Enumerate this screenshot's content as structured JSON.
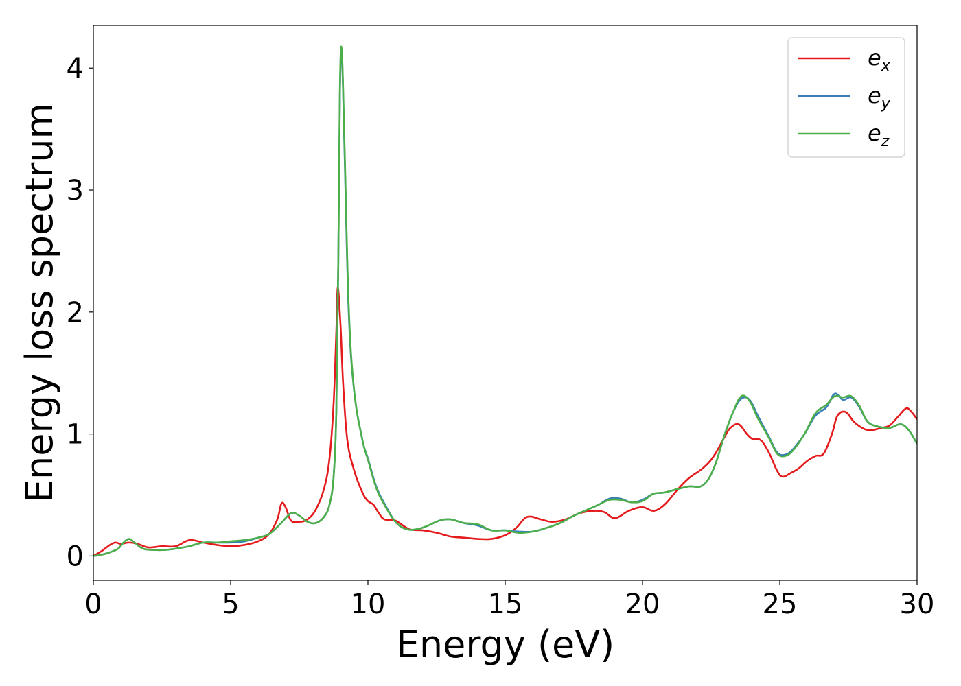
{
  "chart_data": {
    "type": "line",
    "xlabel": "Energy (eV)",
    "ylabel": "Energy loss spectrum",
    "xlim": [
      0,
      30
    ],
    "ylim": [
      -0.2,
      4.35
    ],
    "xticks": [
      0,
      5,
      10,
      15,
      20,
      25,
      30
    ],
    "yticks": [
      0,
      1,
      2,
      3,
      4
    ],
    "xtick_labels": [
      "0",
      "5",
      "10",
      "15",
      "20",
      "25",
      "30"
    ],
    "ytick_labels": [
      "0",
      "1",
      "2",
      "3",
      "4"
    ],
    "grid": false,
    "legend_position": "top-right",
    "series": [
      {
        "name": "e_x",
        "label_base": "e",
        "label_sub": "x",
        "color": "#e41a1c",
        "x": [
          0,
          0.3,
          0.6,
          0.8,
          1.0,
          1.3,
          1.6,
          2.0,
          2.5,
          3.0,
          3.5,
          4.0,
          4.5,
          5.0,
          5.5,
          6.0,
          6.4,
          6.7,
          6.85,
          7.0,
          7.2,
          7.5,
          7.8,
          8.1,
          8.4,
          8.6,
          8.75,
          8.85,
          8.9,
          9.0,
          9.1,
          9.25,
          9.5,
          9.8,
          10.0,
          10.2,
          10.4,
          10.6,
          11.0,
          11.5,
          12.0,
          12.5,
          13.0,
          13.5,
          14.0,
          14.5,
          15.0,
          15.4,
          15.8,
          16.3,
          16.7,
          17.2,
          17.7,
          18.2,
          18.6,
          19.0,
          19.5,
          20.0,
          20.4,
          20.8,
          21.3,
          21.7,
          22.2,
          22.6,
          23.0,
          23.2,
          23.5,
          23.8,
          24.0,
          24.3,
          24.6,
          24.9,
          25.1,
          25.4,
          25.7,
          26.0,
          26.3,
          26.6,
          26.9,
          27.1,
          27.4,
          27.7,
          28.0,
          28.3,
          28.7,
          29.0,
          29.3,
          29.6,
          29.8,
          30.0
        ],
        "y": [
          0.0,
          0.04,
          0.09,
          0.11,
          0.1,
          0.11,
          0.1,
          0.07,
          0.08,
          0.08,
          0.13,
          0.11,
          0.09,
          0.08,
          0.09,
          0.12,
          0.18,
          0.3,
          0.43,
          0.4,
          0.29,
          0.28,
          0.3,
          0.38,
          0.55,
          0.8,
          1.25,
          1.85,
          2.2,
          1.9,
          1.4,
          0.95,
          0.7,
          0.52,
          0.45,
          0.42,
          0.35,
          0.3,
          0.29,
          0.22,
          0.21,
          0.19,
          0.16,
          0.15,
          0.14,
          0.14,
          0.17,
          0.23,
          0.32,
          0.3,
          0.28,
          0.3,
          0.35,
          0.37,
          0.36,
          0.31,
          0.37,
          0.4,
          0.37,
          0.42,
          0.55,
          0.64,
          0.72,
          0.82,
          0.98,
          1.05,
          1.08,
          1.0,
          0.96,
          0.95,
          0.85,
          0.7,
          0.65,
          0.68,
          0.72,
          0.78,
          0.82,
          0.84,
          1.0,
          1.15,
          1.18,
          1.1,
          1.05,
          1.03,
          1.05,
          1.07,
          1.14,
          1.21,
          1.18,
          1.12
        ]
      },
      {
        "name": "e_y",
        "label_base": "e",
        "label_sub": "y",
        "color": "#377eb8",
        "x": [
          0,
          0.3,
          0.6,
          0.9,
          1.1,
          1.3,
          1.5,
          1.8,
          2.2,
          2.6,
          3.0,
          3.5,
          4.0,
          4.5,
          5.0,
          5.5,
          6.0,
          6.4,
          6.8,
          7.2,
          7.5,
          7.8,
          8.1,
          8.4,
          8.6,
          8.75,
          8.85,
          8.92,
          8.98,
          9.05,
          9.15,
          9.3,
          9.5,
          9.8,
          10.0,
          10.3,
          10.6,
          11.0,
          11.4,
          11.8,
          12.2,
          12.6,
          13.0,
          13.5,
          14.0,
          14.5,
          15.0,
          15.5,
          16.0,
          16.5,
          17.0,
          17.5,
          18.0,
          18.4,
          18.8,
          19.2,
          19.6,
          20.0,
          20.4,
          20.8,
          21.3,
          21.7,
          22.2,
          22.6,
          23.0,
          23.3,
          23.6,
          23.9,
          24.2,
          24.6,
          24.9,
          25.2,
          25.5,
          25.9,
          26.3,
          26.7,
          27.0,
          27.3,
          27.6,
          27.9,
          28.2,
          28.6,
          29.0,
          29.4,
          29.7,
          30.0
        ],
        "y": [
          0.0,
          0.01,
          0.03,
          0.06,
          0.11,
          0.14,
          0.11,
          0.06,
          0.05,
          0.05,
          0.06,
          0.08,
          0.11,
          0.11,
          0.11,
          0.12,
          0.15,
          0.18,
          0.26,
          0.35,
          0.33,
          0.28,
          0.27,
          0.32,
          0.42,
          0.65,
          1.2,
          2.4,
          3.8,
          4.12,
          3.3,
          2.0,
          1.35,
          0.95,
          0.8,
          0.57,
          0.43,
          0.28,
          0.22,
          0.22,
          0.25,
          0.29,
          0.3,
          0.27,
          0.25,
          0.21,
          0.21,
          0.2,
          0.2,
          0.23,
          0.27,
          0.33,
          0.38,
          0.42,
          0.47,
          0.47,
          0.44,
          0.46,
          0.51,
          0.52,
          0.55,
          0.57,
          0.58,
          0.72,
          1.0,
          1.18,
          1.29,
          1.28,
          1.15,
          0.98,
          0.85,
          0.83,
          0.88,
          1.0,
          1.15,
          1.22,
          1.33,
          1.28,
          1.3,
          1.22,
          1.1,
          1.06,
          1.05,
          1.08,
          1.03,
          0.92
        ]
      },
      {
        "name": "e_z",
        "label_base": "e",
        "label_sub": "z",
        "color": "#4daf4a",
        "x": [
          0,
          0.3,
          0.6,
          0.9,
          1.1,
          1.3,
          1.5,
          1.8,
          2.2,
          2.6,
          3.0,
          3.5,
          4.0,
          4.5,
          5.0,
          5.5,
          6.0,
          6.4,
          6.8,
          7.2,
          7.5,
          7.8,
          8.1,
          8.4,
          8.6,
          8.75,
          8.85,
          8.92,
          8.98,
          9.05,
          9.15,
          9.3,
          9.5,
          9.8,
          10.0,
          10.3,
          10.6,
          11.0,
          11.4,
          11.8,
          12.2,
          12.6,
          13.0,
          13.5,
          14.0,
          14.5,
          15.0,
          15.5,
          16.0,
          16.5,
          17.0,
          17.5,
          18.0,
          18.4,
          18.8,
          19.2,
          19.6,
          20.0,
          20.4,
          20.8,
          21.3,
          21.7,
          22.2,
          22.6,
          23.0,
          23.3,
          23.6,
          23.9,
          24.2,
          24.6,
          24.9,
          25.2,
          25.5,
          25.9,
          26.3,
          26.7,
          27.0,
          27.3,
          27.6,
          27.9,
          28.2,
          28.6,
          29.0,
          29.4,
          29.7,
          30.0
        ],
        "y": [
          0.0,
          0.01,
          0.03,
          0.06,
          0.11,
          0.14,
          0.11,
          0.06,
          0.05,
          0.05,
          0.06,
          0.08,
          0.11,
          0.11,
          0.12,
          0.13,
          0.15,
          0.18,
          0.26,
          0.35,
          0.33,
          0.28,
          0.27,
          0.32,
          0.42,
          0.65,
          1.2,
          2.4,
          3.85,
          4.14,
          3.35,
          2.05,
          1.35,
          0.95,
          0.79,
          0.56,
          0.42,
          0.28,
          0.22,
          0.22,
          0.25,
          0.29,
          0.3,
          0.27,
          0.26,
          0.21,
          0.21,
          0.19,
          0.2,
          0.23,
          0.27,
          0.33,
          0.38,
          0.42,
          0.46,
          0.46,
          0.44,
          0.45,
          0.51,
          0.52,
          0.55,
          0.57,
          0.58,
          0.72,
          1.0,
          1.18,
          1.31,
          1.27,
          1.13,
          0.97,
          0.84,
          0.82,
          0.87,
          1.0,
          1.17,
          1.24,
          1.31,
          1.3,
          1.31,
          1.23,
          1.1,
          1.06,
          1.05,
          1.08,
          1.03,
          0.92
        ]
      }
    ]
  }
}
